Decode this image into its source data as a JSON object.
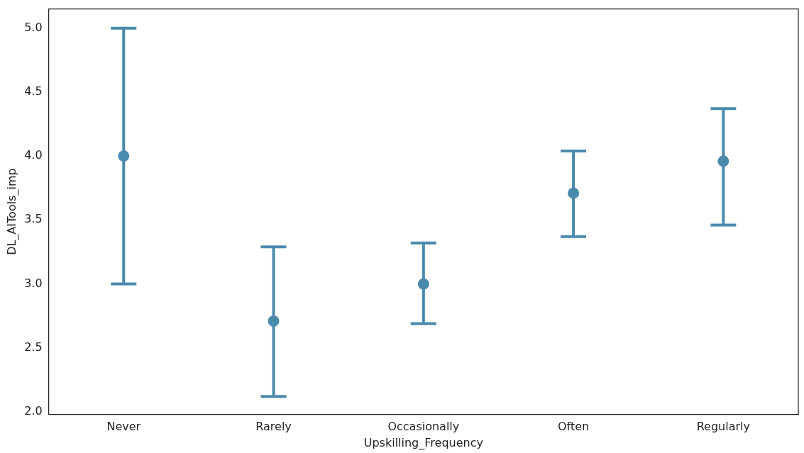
{
  "chart_data": {
    "type": "scatter",
    "xlabel": "Upskilling_Frequency",
    "ylabel": "DL_AITools_imp",
    "categories": [
      "Never",
      "Rarely",
      "Occasionally",
      "Often",
      "Regularly"
    ],
    "values": [
      4.0,
      2.71,
      3.0,
      3.71,
      3.96
    ],
    "errors": [
      [
        3.0,
        5.0
      ],
      [
        2.12,
        3.29
      ],
      [
        2.69,
        3.32
      ],
      [
        3.37,
        4.04
      ],
      [
        3.46,
        4.37
      ]
    ],
    "color": "#4a8aad",
    "marker": "circle",
    "ylim": [
      1.98,
      5.15
    ],
    "yticks": [
      {
        "value": 2,
        "label": "2.0"
      },
      {
        "value": 2.5,
        "label": "2.5"
      },
      {
        "value": 3,
        "label": "3.0"
      },
      {
        "value": 3.5,
        "label": "3.5"
      },
      {
        "value": 4,
        "label": "4.0"
      },
      {
        "value": 4.5,
        "label": "4.5"
      },
      {
        "value": 5,
        "label": "5.0"
      }
    ],
    "grid": false,
    "legend": false
  }
}
